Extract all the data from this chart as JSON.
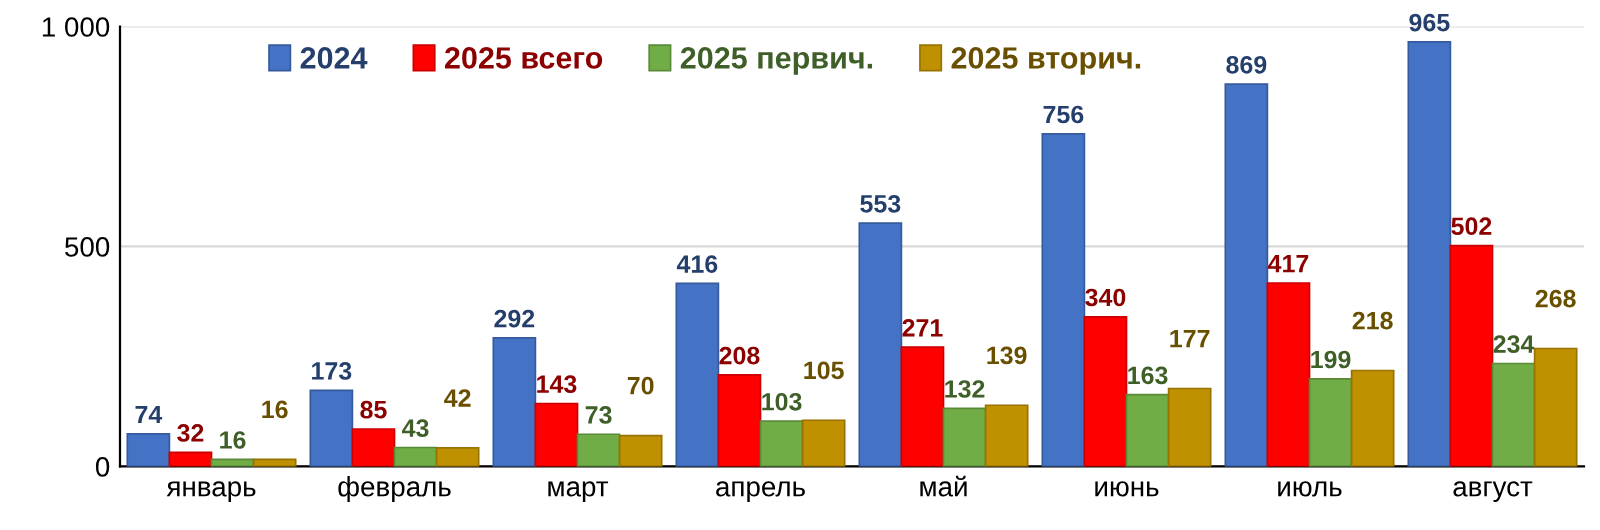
{
  "chart_data": {
    "type": "bar",
    "categories": [
      "январь",
      "февраль",
      "март",
      "апрель",
      "май",
      "июнь",
      "июль",
      "август"
    ],
    "series": [
      {
        "name": "2024",
        "color": "#4472c4",
        "values": [
          74,
          173,
          292,
          416,
          553,
          756,
          869,
          965
        ]
      },
      {
        "name": "2025 всего",
        "color": "#ff0000",
        "values": [
          32,
          85,
          143,
          208,
          271,
          340,
          417,
          502
        ]
      },
      {
        "name": "2025 первич.",
        "color": "#70ad47",
        "values": [
          16,
          43,
          73,
          103,
          132,
          163,
          199,
          234
        ]
      },
      {
        "name": "2025 вторич.",
        "color": "#bf9000",
        "values": [
          16,
          42,
          70,
          105,
          139,
          177,
          218,
          268
        ]
      }
    ],
    "ylim": [
      0,
      1000
    ],
    "yticks": [
      0,
      500,
      {
        "value": 1000,
        "label": "1 000"
      }
    ],
    "grid": "y",
    "legend": "top",
    "data_labels": true
  }
}
